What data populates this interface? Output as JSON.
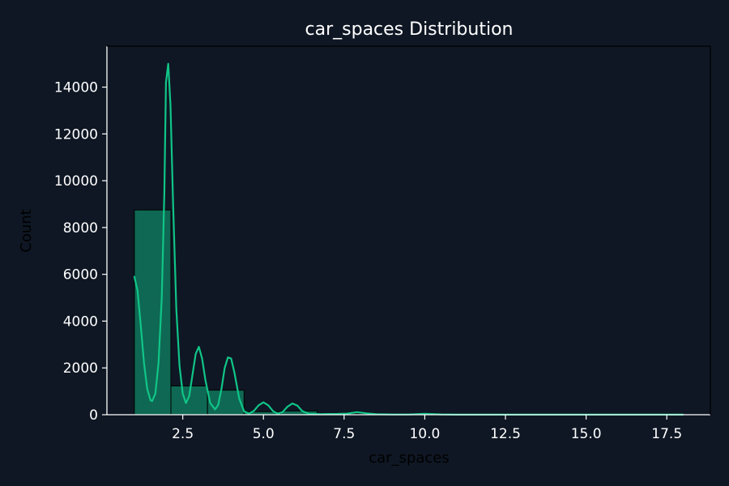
{
  "chart_data": {
    "type": "histogram",
    "title": "car_spaces Distribution",
    "xlabel": "car_spaces",
    "ylabel": "Count",
    "xlim": [
      0.15,
      18.85
    ],
    "ylim": [
      0,
      15750
    ],
    "xticks": [
      2.5,
      5.0,
      7.5,
      10.0,
      12.5,
      15.0,
      17.5
    ],
    "xtick_labels": [
      "2.5",
      "5.0",
      "7.5",
      "10.0",
      "12.5",
      "15.0",
      "17.5"
    ],
    "yticks": [
      0,
      2000,
      4000,
      6000,
      8000,
      10000,
      12000,
      14000
    ],
    "ytick_labels": [
      "0",
      "2000",
      "4000",
      "6000",
      "8000",
      "10000",
      "12000",
      "14000"
    ],
    "bins": [
      {
        "x0": 1.0,
        "x1": 2.133,
        "count": 8750
      },
      {
        "x0": 2.133,
        "x1": 3.267,
        "count": 1230
      },
      {
        "x0": 3.267,
        "x1": 4.4,
        "count": 1050
      },
      {
        "x0": 4.4,
        "x1": 5.533,
        "count": 130
      },
      {
        "x0": 5.533,
        "x1": 6.667,
        "count": 160
      },
      {
        "x0": 6.667,
        "x1": 7.8,
        "count": 30
      },
      {
        "x0": 7.8,
        "x1": 8.933,
        "count": 20
      },
      {
        "x0": 8.933,
        "x1": 10.067,
        "count": 10
      },
      {
        "x0": 10.067,
        "x1": 11.2,
        "count": 5
      },
      {
        "x0": 11.2,
        "x1": 12.333,
        "count": 3
      },
      {
        "x0": 12.333,
        "x1": 13.467,
        "count": 2
      },
      {
        "x0": 13.467,
        "x1": 14.6,
        "count": 2
      },
      {
        "x0": 14.6,
        "x1": 15.733,
        "count": 1
      },
      {
        "x0": 15.733,
        "x1": 16.867,
        "count": 1
      },
      {
        "x0": 16.867,
        "x1": 18.0,
        "count": 1
      }
    ],
    "kde": [
      [
        1.0,
        5900
      ],
      [
        1.1,
        5300
      ],
      [
        1.2,
        3800
      ],
      [
        1.3,
        2200
      ],
      [
        1.4,
        1100
      ],
      [
        1.5,
        620
      ],
      [
        1.55,
        580
      ],
      [
        1.65,
        900
      ],
      [
        1.75,
        2200
      ],
      [
        1.85,
        5000
      ],
      [
        1.93,
        9500
      ],
      [
        1.98,
        14200
      ],
      [
        2.05,
        15000
      ],
      [
        2.12,
        13200
      ],
      [
        2.2,
        9000
      ],
      [
        2.3,
        4500
      ],
      [
        2.4,
        2100
      ],
      [
        2.5,
        900
      ],
      [
        2.6,
        500
      ],
      [
        2.7,
        800
      ],
      [
        2.8,
        1700
      ],
      [
        2.9,
        2600
      ],
      [
        3.0,
        2900
      ],
      [
        3.1,
        2400
      ],
      [
        3.2,
        1500
      ],
      [
        3.35,
        500
      ],
      [
        3.5,
        230
      ],
      [
        3.6,
        420
      ],
      [
        3.7,
        1100
      ],
      [
        3.8,
        2000
      ],
      [
        3.9,
        2450
      ],
      [
        4.0,
        2400
      ],
      [
        4.1,
        1800
      ],
      [
        4.25,
        700
      ],
      [
        4.4,
        150
      ],
      [
        4.55,
        50
      ],
      [
        4.7,
        160
      ],
      [
        4.85,
        400
      ],
      [
        5.0,
        530
      ],
      [
        5.15,
        400
      ],
      [
        5.3,
        150
      ],
      [
        5.45,
        40
      ],
      [
        5.6,
        120
      ],
      [
        5.75,
        350
      ],
      [
        5.9,
        480
      ],
      [
        6.05,
        390
      ],
      [
        6.2,
        160
      ],
      [
        6.4,
        40
      ],
      [
        6.6,
        30
      ],
      [
        6.8,
        25
      ],
      [
        7.0,
        30
      ],
      [
        7.3,
        35
      ],
      [
        7.6,
        50
      ],
      [
        7.9,
        110
      ],
      [
        8.2,
        60
      ],
      [
        8.5,
        20
      ],
      [
        9.0,
        10
      ],
      [
        9.5,
        10
      ],
      [
        10.0,
        40
      ],
      [
        10.5,
        15
      ],
      [
        11.0,
        5
      ],
      [
        12.0,
        5
      ],
      [
        13.0,
        3
      ],
      [
        14.0,
        2
      ],
      [
        15.0,
        4
      ],
      [
        16.0,
        2
      ],
      [
        17.0,
        2
      ],
      [
        18.0,
        5
      ]
    ],
    "grid": false,
    "colors": {
      "background": "#0f1724",
      "bar_fill": "#10b981",
      "bar_opacity": 0.5,
      "bar_edge": "#000000",
      "kde_line": "#10c587",
      "axis": "#ffffff",
      "text": "#ffffff",
      "axis_label_text": "#000000"
    }
  }
}
